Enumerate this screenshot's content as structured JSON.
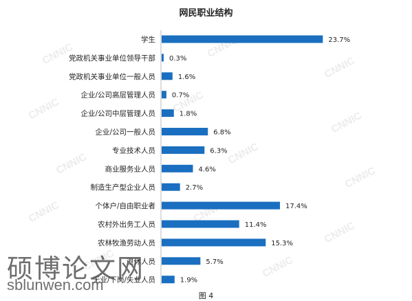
{
  "chart_data": {
    "type": "bar",
    "orientation": "horizontal",
    "title": "网民职业结构",
    "categories": [
      "学生",
      "党政机关事业单位领导干部",
      "党政机关事业单位一般人员",
      "企业/公司高层管理人员",
      "企业/公司中层管理人员",
      "企业/公司一般人员",
      "专业技术人员",
      "商业服务业人员",
      "制造生产型企业人员",
      "个体户/自由职业者",
      "农村外出务工人员",
      "农林牧渔劳动人员",
      "退休人员",
      "无业/下岗/失业人员"
    ],
    "values": [
      23.7,
      0.3,
      1.6,
      0.7,
      1.8,
      6.8,
      6.3,
      4.6,
      2.7,
      17.4,
      11.4,
      15.3,
      5.7,
      1.9
    ],
    "value_labels": [
      "23.7%",
      "0.3%",
      "1.6%",
      "0.7%",
      "1.8%",
      "6.8%",
      "6.3%",
      "4.6%",
      "2.7%",
      "17.4%",
      "11.4%",
      "15.3%",
      "5.7%",
      "1.9%"
    ],
    "xlim": [
      0,
      25
    ],
    "bar_color": "#1a6fc0",
    "grid": false,
    "legend": "none"
  },
  "figure_caption": "图 4",
  "watermark": {
    "text": "CNNIC",
    "color": "#ececec"
  },
  "overlay": {
    "site_name": "硕博论文网",
    "site_url": "sblunwen.com"
  }
}
